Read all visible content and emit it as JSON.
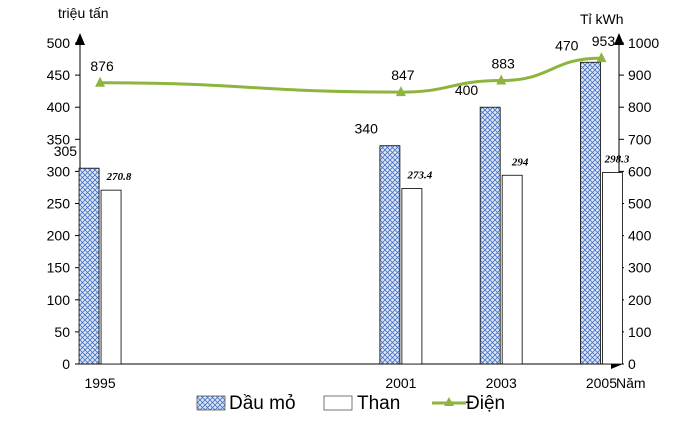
{
  "chart_data": {
    "type": "bar",
    "categories": [
      "1995",
      "2001",
      "2003",
      "2005"
    ],
    "x": [
      1995,
      2001,
      2003,
      2005
    ],
    "xlabel": "Năm",
    "ylabel_left": "triệu tấn",
    "ylabel_right": "Tỉ kWh",
    "ylim_left": [
      0,
      500
    ],
    "ylim_right": [
      0,
      1000
    ],
    "yticks_left": [
      0,
      50,
      100,
      150,
      200,
      250,
      300,
      350,
      400,
      450,
      500
    ],
    "yticks_right": [
      0,
      100,
      200,
      300,
      400,
      500,
      600,
      700,
      800,
      900,
      1000
    ],
    "grid": false,
    "legend_position": "bottom",
    "series": [
      {
        "name": "Dầu mỏ",
        "kind": "bar",
        "axis": "left",
        "pattern": "crosshatch",
        "color": "#4472c4",
        "values": [
          305,
          340,
          400,
          470
        ],
        "labels": [
          "305",
          "340",
          "400",
          "470"
        ]
      },
      {
        "name": "Than",
        "kind": "bar",
        "axis": "left",
        "color": "#ffffff",
        "values": [
          270.8,
          273.4,
          294,
          298.3
        ],
        "labels": [
          "270.8",
          "273.4",
          "294",
          "298.3"
        ]
      },
      {
        "name": "Điện",
        "kind": "line",
        "axis": "right",
        "color": "#8db43e",
        "marker": "triangle",
        "values": [
          876,
          847,
          883,
          953
        ],
        "labels": [
          "876",
          "847",
          "883",
          "953"
        ]
      }
    ]
  }
}
